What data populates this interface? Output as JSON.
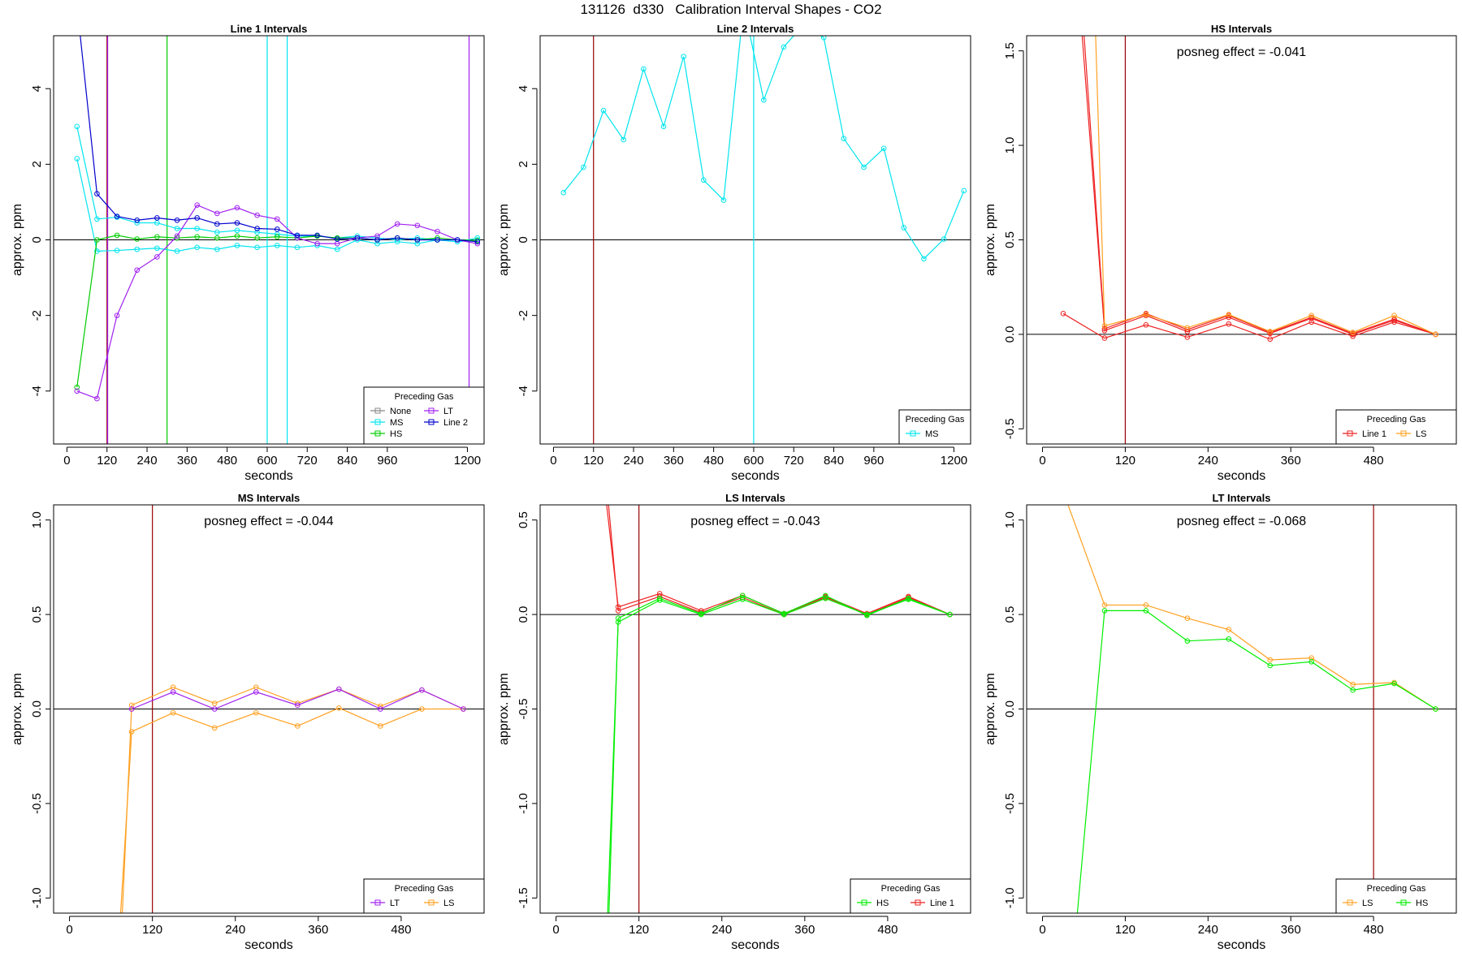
{
  "page_title": "131126  d330   Calibration Interval Shapes - CO2",
  "chart_data": [
    {
      "type": "line",
      "title": "Line 1 Intervals",
      "xlabel": "seconds",
      "ylabel": "approx. ppm",
      "xlim": [
        -40,
        1250
      ],
      "ylim": [
        -5.4,
        5.4
      ],
      "xticks": [
        0,
        120,
        240,
        360,
        480,
        600,
        720,
        840,
        960,
        1200
      ],
      "yticks": [
        -4,
        -2,
        0,
        2,
        4
      ],
      "hline": 0,
      "vlines": [
        {
          "x": 120,
          "color": "#990000"
        },
        {
          "x": 122,
          "color": "#a020f0"
        },
        {
          "x": 300,
          "color": "#00cc00"
        },
        {
          "x": 600,
          "color": "#00e5ee"
        },
        {
          "x": 660,
          "color": "#00e5ee"
        },
        {
          "x": 1205,
          "color": "#a020f0"
        }
      ],
      "legend": {
        "title": "Preceding Gas",
        "position": "bottom-right",
        "columns": 2,
        "entries": [
          {
            "name": "None",
            "color": "#888888"
          },
          {
            "name": "LT",
            "color": "#a020f0"
          },
          {
            "name": "MS",
            "color": "#00e5ee"
          },
          {
            "name": "Line 2",
            "color": "#0000cd"
          },
          {
            "name": "HS",
            "color": "#00cc00"
          }
        ]
      },
      "series": [
        {
          "name": "MS",
          "color": "#00e5ee",
          "x": [
            30,
            90,
            150,
            210,
            270,
            330,
            390,
            450,
            510,
            570,
            630,
            690,
            750,
            810,
            870,
            930,
            990,
            1050,
            1110,
            1170,
            1230
          ],
          "y": [
            3.0,
            0.55,
            0.6,
            0.45,
            0.45,
            0.3,
            0.3,
            0.2,
            0.25,
            0.2,
            0.15,
            0.1,
            0.1,
            0.05,
            0.1,
            0.05,
            0.0,
            0.05,
            0.0,
            -0.05,
            0.05
          ]
        },
        {
          "name": "MS",
          "color": "#00e5ee",
          "x": [
            30,
            90,
            150,
            210,
            270,
            330,
            390,
            450,
            510,
            570,
            630,
            690,
            750,
            810,
            870,
            930,
            990,
            1050,
            1110,
            1170,
            1230
          ],
          "y": [
            2.15,
            -0.3,
            -0.28,
            -0.25,
            -0.22,
            -0.3,
            -0.2,
            -0.25,
            -0.15,
            -0.2,
            -0.15,
            -0.2,
            -0.15,
            -0.25,
            0.0,
            -0.1,
            -0.05,
            -0.1,
            0.0,
            -0.05,
            0.0
          ]
        },
        {
          "name": "HS",
          "color": "#00cc00",
          "x": [
            30,
            90,
            150,
            210,
            270,
            330,
            390,
            450,
            510,
            570,
            630,
            690,
            750,
            810,
            870,
            930,
            990,
            1050,
            1110,
            1170,
            1230
          ],
          "y": [
            -3.9,
            0.0,
            0.12,
            0.02,
            0.08,
            0.05,
            0.08,
            0.05,
            0.1,
            0.05,
            0.08,
            0.05,
            0.1,
            0.05,
            0.05,
            0.0,
            0.05,
            0.0,
            0.05,
            0.0,
            -0.02
          ]
        },
        {
          "name": "LT",
          "color": "#a020f0",
          "x": [
            30,
            90,
            150,
            210,
            270,
            330,
            390,
            450,
            510,
            570,
            630,
            690,
            750,
            810,
            870,
            930,
            990,
            1050,
            1110,
            1170,
            1230
          ],
          "y": [
            -4.0,
            -4.2,
            -2.0,
            -0.8,
            -0.45,
            0.1,
            0.92,
            0.7,
            0.85,
            0.65,
            0.55,
            0.05,
            -0.1,
            -0.1,
            0.05,
            0.1,
            0.42,
            0.38,
            0.22,
            0.0,
            -0.1
          ]
        },
        {
          "name": "Line 2",
          "color": "#0000cd",
          "x": [
            35,
            90,
            150,
            210,
            270,
            330,
            390,
            450,
            510,
            570,
            630,
            690,
            750,
            810,
            870,
            930,
            990,
            1050,
            1110,
            1170,
            1230
          ],
          "y": [
            5.8,
            1.22,
            0.62,
            0.52,
            0.58,
            0.52,
            0.58,
            0.42,
            0.45,
            0.3,
            0.28,
            0.12,
            0.12,
            0.02,
            0.05,
            0.0,
            0.05,
            0.0,
            0.0,
            0.0,
            -0.05
          ]
        }
      ]
    },
    {
      "type": "line",
      "title": "Line 2 Intervals",
      "xlabel": "seconds",
      "ylabel": "approx. ppm",
      "xlim": [
        -40,
        1250
      ],
      "ylim": [
        -5.4,
        5.4
      ],
      "xticks": [
        0,
        120,
        240,
        360,
        480,
        600,
        720,
        840,
        960,
        1200
      ],
      "yticks": [
        -4,
        -2,
        0,
        2,
        4
      ],
      "hline": 0,
      "vlines": [
        {
          "x": 120,
          "color": "#990000"
        },
        {
          "x": 600,
          "color": "#00e5ee"
        }
      ],
      "legend": {
        "title": "Preceding Gas",
        "position": "bottom-right",
        "columns": 1,
        "entries": [
          {
            "name": "MS",
            "color": "#00e5ee"
          }
        ]
      },
      "series": [
        {
          "name": "MS",
          "color": "#00e5ee",
          "x": [
            30,
            90,
            150,
            210,
            270,
            330,
            390,
            450,
            510,
            570,
            630,
            690,
            750,
            810,
            870,
            930,
            990,
            1050,
            1110,
            1170,
            1230
          ],
          "y": [
            1.25,
            1.92,
            3.42,
            2.65,
            4.52,
            3.0,
            4.85,
            1.58,
            1.05,
            6.2,
            3.7,
            5.1,
            5.7,
            5.35,
            2.68,
            1.92,
            2.42,
            0.32,
            -0.5,
            0.02,
            1.3
          ]
        }
      ]
    },
    {
      "type": "line",
      "title": "HS Intervals",
      "annotation": "posneg effect = -0.041",
      "xlabel": "seconds",
      "ylabel": "approx. ppm",
      "xlim": [
        -23,
        600
      ],
      "ylim": [
        -0.58,
        1.58
      ],
      "xticks": [
        0,
        120,
        240,
        360,
        480
      ],
      "yticks": [
        -0.5,
        0.0,
        0.5,
        1.0,
        1.5
      ],
      "hline": 0,
      "vlines": [
        {
          "x": 120,
          "color": "#990000"
        }
      ],
      "legend": {
        "title": "Preceding Gas",
        "position": "bottom-right",
        "columns": 2,
        "entries": [
          {
            "name": "Line 1",
            "color": "#ee2222"
          },
          {
            "name": "LS",
            "color": "#ffa020"
          }
        ]
      },
      "series": [
        {
          "name": "Line 1",
          "color": "#ee2222",
          "x": [
            30,
            90,
            150,
            210,
            270,
            330,
            390,
            450,
            510,
            570
          ],
          "y": [
            0.11,
            -0.02,
            0.05,
            -0.015,
            0.055,
            -0.025,
            0.065,
            -0.01,
            0.065,
            0.0
          ]
        },
        {
          "name": "Line 1",
          "color": "#ee2222",
          "x": [
            55,
            90,
            150,
            210,
            270,
            330,
            390,
            450,
            510,
            570
          ],
          "y": [
            1.7,
            0.02,
            0.1,
            0.015,
            0.09,
            0.005,
            0.085,
            0.0,
            0.075,
            0.0
          ]
        },
        {
          "name": "Line 1",
          "color": "#ee2222",
          "x": [
            58,
            90,
            150,
            210,
            270,
            330,
            390,
            450,
            510,
            570
          ],
          "y": [
            1.7,
            0.03,
            0.11,
            0.025,
            0.1,
            0.01,
            0.09,
            0.005,
            0.08,
            0.0
          ]
        },
        {
          "name": "LS",
          "color": "#ffa020",
          "x": [
            76,
            90,
            150,
            210,
            270,
            330,
            390,
            450,
            510,
            570
          ],
          "y": [
            1.7,
            0.045,
            0.105,
            0.035,
            0.105,
            0.015,
            0.1,
            0.01,
            0.1,
            0.0
          ]
        }
      ]
    },
    {
      "type": "line",
      "title": "MS Intervals",
      "annotation": "posneg effect = -0.044",
      "xlabel": "seconds",
      "ylabel": "approx. ppm",
      "xlim": [
        -23,
        600
      ],
      "ylim": [
        -1.08,
        1.08
      ],
      "xticks": [
        0,
        120,
        240,
        360,
        480
      ],
      "yticks": [
        -1.0,
        -0.5,
        0.0,
        0.5,
        1.0
      ],
      "hline": 0,
      "vlines": [
        {
          "x": 120,
          "color": "#990000"
        }
      ],
      "legend": {
        "title": "Preceding Gas",
        "position": "bottom-right",
        "columns": 2,
        "entries": [
          {
            "name": "LT",
            "color": "#a020f0"
          },
          {
            "name": "LS",
            "color": "#ffa020"
          }
        ]
      },
      "series": [
        {
          "name": "LS",
          "color": "#ffa020",
          "x": [
            72,
            90,
            150,
            210,
            270,
            330,
            390,
            450,
            510,
            570
          ],
          "y": [
            -1.2,
            -0.12,
            -0.02,
            -0.1,
            -0.02,
            -0.09,
            0.005,
            -0.09,
            0.0,
            0.0
          ]
        },
        {
          "name": "LS",
          "color": "#ffa020",
          "x": [
            75,
            90,
            150,
            210,
            270,
            330,
            390,
            450,
            510,
            570
          ],
          "y": [
            -1.2,
            0.02,
            0.115,
            0.03,
            0.115,
            0.03,
            0.105,
            0.015,
            0.1,
            0.0
          ]
        },
        {
          "name": "LT",
          "color": "#a020f0",
          "x": [
            90,
            150,
            210,
            270,
            330,
            390,
            450,
            510,
            570
          ],
          "y": [
            0.0,
            0.09,
            0.0,
            0.09,
            0.02,
            0.105,
            0.0,
            0.1,
            0.0
          ]
        }
      ]
    },
    {
      "type": "line",
      "title": "LS Intervals",
      "annotation": "posneg effect = -0.043",
      "xlabel": "seconds",
      "ylabel": "approx. ppm",
      "xlim": [
        -23,
        600
      ],
      "ylim": [
        -1.58,
        0.58
      ],
      "xticks": [
        0,
        120,
        240,
        360,
        480
      ],
      "yticks": [
        -1.5,
        -1.0,
        -0.5,
        0.0,
        0.5
      ],
      "hline": 0,
      "vlines": [
        {
          "x": 120,
          "color": "#990000"
        }
      ],
      "legend": {
        "title": "Preceding Gas",
        "position": "bottom-right",
        "columns": 2,
        "entries": [
          {
            "name": "HS",
            "color": "#00ee00"
          },
          {
            "name": "Line 1",
            "color": "#ee2222"
          }
        ]
      },
      "series": [
        {
          "name": "Line 1",
          "color": "#ee2222",
          "x": [
            72,
            90,
            150,
            210,
            270,
            330,
            390,
            450,
            510,
            570
          ],
          "y": [
            0.62,
            0.04,
            0.11,
            0.02,
            0.1,
            0.005,
            0.095,
            0.005,
            0.095,
            0.0
          ]
        },
        {
          "name": "Line 1",
          "color": "#ee2222",
          "x": [
            75,
            90,
            150,
            210,
            270,
            330,
            390,
            450,
            510,
            570
          ],
          "y": [
            0.62,
            0.02,
            0.095,
            0.01,
            0.09,
            0.0,
            0.09,
            0.0,
            0.09,
            0.0
          ]
        },
        {
          "name": "HS",
          "color": "#00ee00",
          "x": [
            76,
            90,
            150,
            210,
            270,
            330,
            390,
            450,
            510,
            570
          ],
          "y": [
            -1.65,
            -0.02,
            0.085,
            0.005,
            0.1,
            0.005,
            0.1,
            -0.005,
            0.085,
            0.0
          ]
        },
        {
          "name": "HS",
          "color": "#00ee00",
          "x": [
            74,
            90,
            150,
            210,
            270,
            330,
            390,
            450,
            510,
            570
          ],
          "y": [
            -1.65,
            -0.04,
            0.075,
            0.0,
            0.08,
            0.0,
            0.085,
            0.0,
            0.08,
            0.0
          ]
        }
      ]
    },
    {
      "type": "line",
      "title": "LT Intervals",
      "annotation": "posneg effect = -0.068",
      "xlabel": "seconds",
      "ylabel": "approx. ppm",
      "xlim": [
        -23,
        600
      ],
      "ylim": [
        -1.08,
        1.08
      ],
      "xticks": [
        0,
        120,
        240,
        360,
        480
      ],
      "yticks": [
        -1.0,
        -0.5,
        0.0,
        0.5,
        1.0
      ],
      "hline": 0,
      "vlines": [
        {
          "x": 480,
          "color": "#990000"
        }
      ],
      "legend": {
        "title": "Preceding Gas",
        "position": "bottom-right",
        "columns": 2,
        "entries": [
          {
            "name": "LS",
            "color": "#ffa020"
          },
          {
            "name": "HS",
            "color": "#00ee00"
          }
        ]
      },
      "series": [
        {
          "name": "LS",
          "color": "#ffa020",
          "x": [
            35,
            90,
            150,
            210,
            270,
            330,
            390,
            450,
            510,
            570
          ],
          "y": [
            1.1,
            0.55,
            0.55,
            0.48,
            0.42,
            0.26,
            0.27,
            0.13,
            0.14,
            0.0
          ]
        },
        {
          "name": "HS",
          "color": "#00ee00",
          "x": [
            50,
            90,
            150,
            210,
            270,
            330,
            390,
            450,
            510,
            570
          ],
          "y": [
            -1.1,
            0.52,
            0.52,
            0.36,
            0.37,
            0.23,
            0.25,
            0.1,
            0.135,
            0.0
          ]
        }
      ]
    }
  ]
}
